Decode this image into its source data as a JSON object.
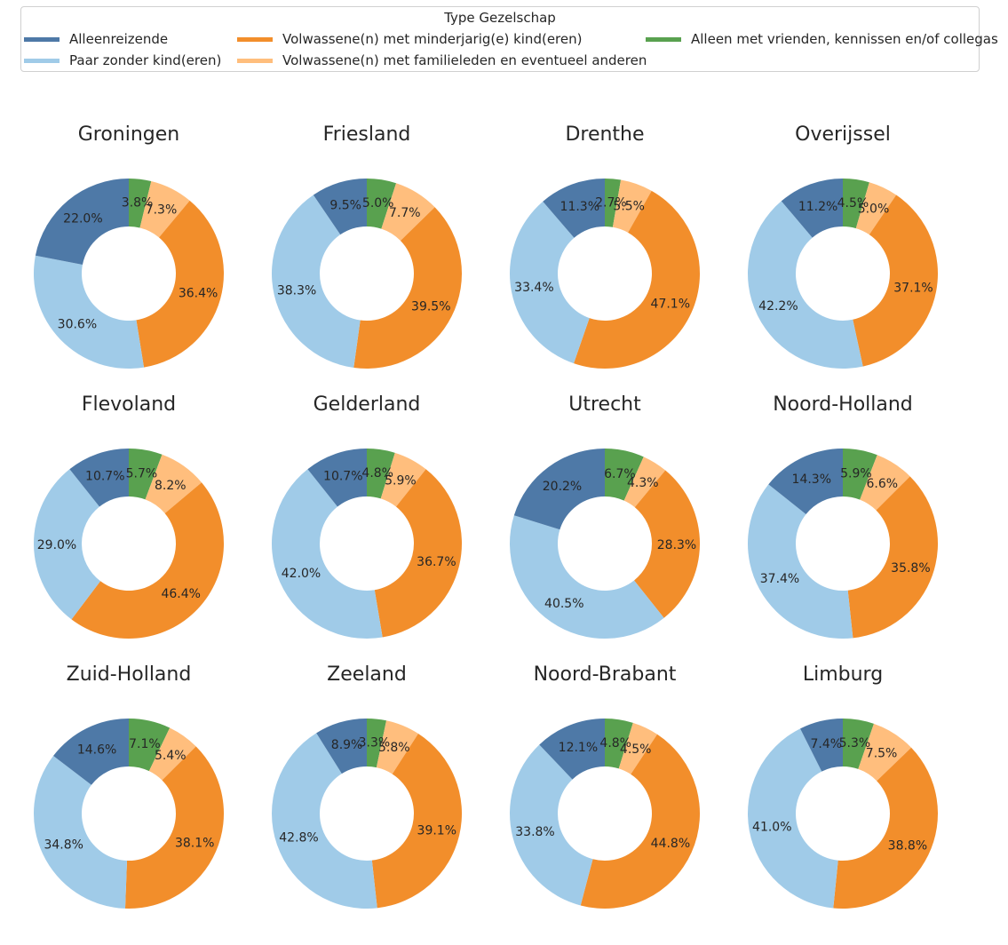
{
  "legend": {
    "title": "Type Gezelschap",
    "items": [
      {
        "label": "Alleenreizende",
        "color": "#4e79a7"
      },
      {
        "label": "Paar zonder kind(eren)",
        "color": "#a0cbe8"
      },
      {
        "label": "Volwassene(n) met minderjarig(e) kind(eren)",
        "color": "#f28e2b"
      },
      {
        "label": "Volwassene(n) met familieleden en eventueel anderen",
        "color": "#ffbe7d"
      },
      {
        "label": "Alleen met vrienden, kennissen en/of collegas",
        "color": "#59a14f"
      }
    ]
  },
  "chart_data": {
    "type": "pie",
    "variant": "donut",
    "categories": [
      "Alleen met vrienden, kennissen en/of collegas",
      "Volwassene(n) met familieleden en eventueel anderen",
      "Volwassene(n) met minderjarig(e) kind(eren)",
      "Paar zonder kind(eren)",
      "Alleenreizende"
    ],
    "colors": [
      "#59a14f",
      "#ffbe7d",
      "#f28e2b",
      "#a0cbe8",
      "#4e79a7"
    ],
    "start_angle": "top",
    "direction": "clockwise",
    "legend_position": "top",
    "charts": [
      {
        "title": "Groningen",
        "values": [
          3.8,
          7.3,
          36.4,
          30.6,
          22.0
        ]
      },
      {
        "title": "Friesland",
        "values": [
          5.0,
          7.7,
          39.5,
          38.3,
          9.5
        ]
      },
      {
        "title": "Drenthe",
        "values": [
          2.7,
          5.5,
          47.1,
          33.4,
          11.3
        ]
      },
      {
        "title": "Overijssel",
        "values": [
          4.5,
          5.0,
          37.1,
          42.2,
          11.2
        ]
      },
      {
        "title": "Flevoland",
        "values": [
          5.7,
          8.2,
          46.4,
          29.0,
          10.7
        ]
      },
      {
        "title": "Gelderland",
        "values": [
          4.8,
          5.9,
          36.7,
          42.0,
          10.7
        ]
      },
      {
        "title": "Utrecht",
        "values": [
          6.7,
          4.3,
          28.3,
          40.5,
          20.2
        ]
      },
      {
        "title": "Noord-Holland",
        "values": [
          5.9,
          6.6,
          35.8,
          37.4,
          14.3
        ]
      },
      {
        "title": "Zuid-Holland",
        "values": [
          7.1,
          5.4,
          38.1,
          34.8,
          14.6
        ]
      },
      {
        "title": "Zeeland",
        "values": [
          3.3,
          5.8,
          39.1,
          42.8,
          8.9
        ]
      },
      {
        "title": "Noord-Brabant",
        "values": [
          4.8,
          4.5,
          44.8,
          33.8,
          12.1
        ]
      },
      {
        "title": "Limburg",
        "values": [
          5.3,
          7.5,
          38.8,
          41.0,
          7.4
        ]
      }
    ]
  }
}
